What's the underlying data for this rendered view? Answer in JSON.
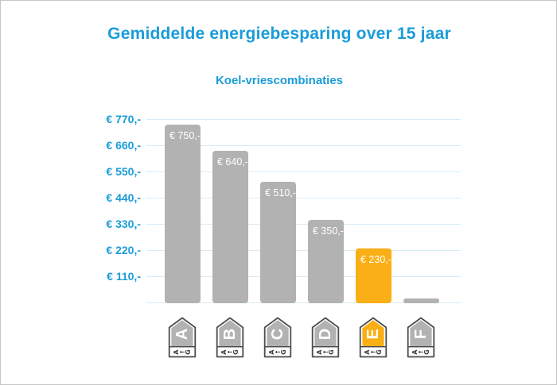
{
  "header": {
    "title": "Gemiddelde energiebesparing over 15 jaar",
    "subtitle": "Koel-vriescombinaties"
  },
  "chart_data": {
    "type": "bar",
    "title": "Gemiddelde energiebesparing over 15 jaar",
    "subtitle": "Koel-vriescombinaties",
    "categories": [
      "A",
      "B",
      "C",
      "D",
      "E",
      "F"
    ],
    "values": [
      750,
      640,
      510,
      350,
      230,
      20
    ],
    "bar_labels": [
      "€ 750,-",
      "€ 640,-",
      "€ 510,-",
      "€ 350,-",
      "€ 230,-",
      ""
    ],
    "y_ticks": [
      "€ 770,-",
      "€ 660,-",
      "€ 550,-",
      "€ 440,-",
      "€ 330,-",
      "€ 220,-",
      "€ 110,-"
    ],
    "y_tick_values": [
      770,
      660,
      550,
      440,
      330,
      220,
      110
    ],
    "ylim": [
      0,
      770
    ],
    "grid": true,
    "legend": "none",
    "bar_colors": [
      "#b2b2b2",
      "#b2b2b2",
      "#b2b2b2",
      "#b2b2b2",
      "#f9af15",
      "#b2b2b2"
    ],
    "highlight_index": 4,
    "axis_icon": {
      "name": "energy-rating-tag",
      "left": "A",
      "arrow": "←",
      "right": "G"
    },
    "colors": {
      "title_blue": "#1a9cd9",
      "bar_default": "#b2b2b2",
      "bar_highlight": "#f9af15",
      "gridline": "#d6ebf8",
      "bar_label_text": "#ffffff",
      "tag_outline": "#4c4c4e",
      "page_border": "#c6c6c6"
    }
  }
}
